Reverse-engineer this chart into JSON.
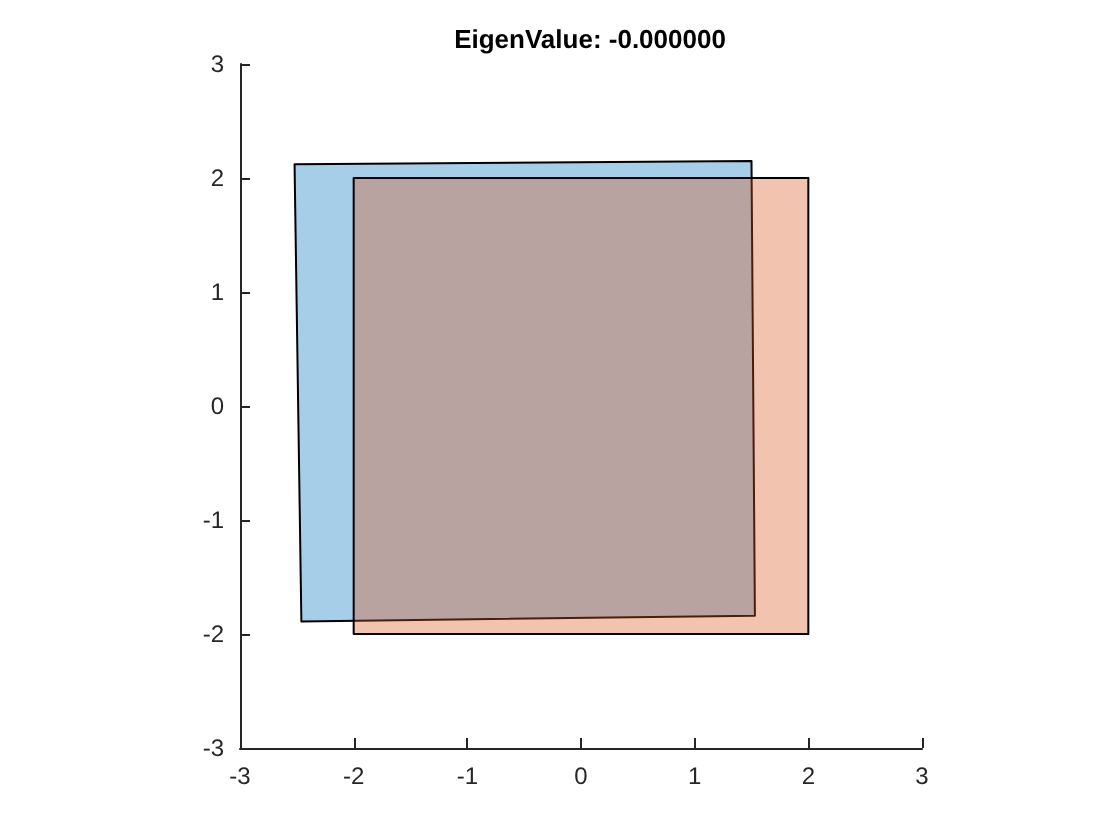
{
  "chart_data": {
    "type": "area",
    "title": "EigenValue: -0.000000",
    "series": [
      {
        "color": "#0072bd",
        "x": [
          -2.52,
          1.5,
          1.53,
          -2.46
        ],
        "values": [
          2.12,
          2.15,
          -1.84,
          -1.89
        ]
      },
      {
        "color": "#d95319",
        "x": [
          -2,
          2,
          2,
          -2
        ],
        "values": [
          2,
          2,
          -2,
          -2
        ]
      }
    ],
    "xlim": [
      -3,
      3
    ],
    "xticks": [
      -3,
      -2,
      -1,
      0,
      1,
      2,
      3
    ],
    "ylim": [
      -3,
      3
    ],
    "yticks": [
      -3,
      -2,
      -1,
      0,
      1,
      2,
      3
    ],
    "grid": false
  }
}
